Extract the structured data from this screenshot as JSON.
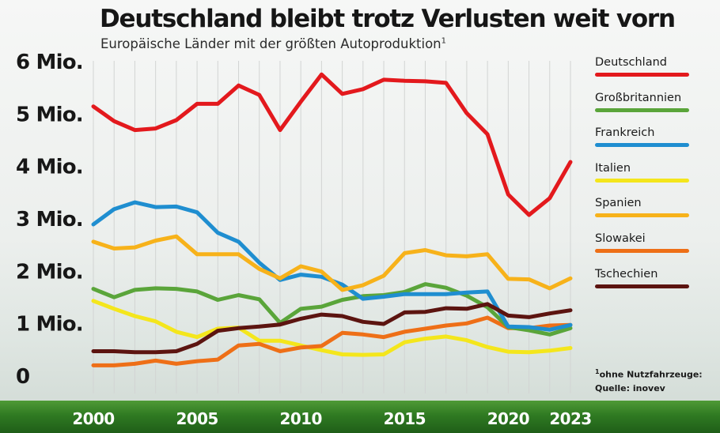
{
  "title": "Deutschland bleibt trotz Verlusten weit vorn",
  "subtitle": "Europäische Länder mit der größten Autoproduktion",
  "subtitle_note": "1",
  "footnote": {
    "marker": "1",
    "text": "ohne Nutzfahrzeuge:",
    "source": "Quelle: inovev"
  },
  "chart_data": {
    "type": "line",
    "title": "Deutschland bleibt trotz Verlusten weit vorn",
    "subtitle": "Europäische Länder mit der größten Autoproduktion",
    "xlabel": "",
    "ylabel": "",
    "xlim": [
      2000,
      2023
    ],
    "ylim": [
      0,
      6
    ],
    "grid": "vertical lines at each year",
    "legend": "right",
    "y_ticks": [
      {
        "value": 0,
        "label": "0"
      },
      {
        "value": 1,
        "label": "1 Mio."
      },
      {
        "value": 2,
        "label": "2 Mio."
      },
      {
        "value": 3,
        "label": "3 Mio."
      },
      {
        "value": 4,
        "label": "4 Mio."
      },
      {
        "value": 5,
        "label": "5 Mio."
      },
      {
        "value": 6,
        "label": "6 Mio."
      }
    ],
    "x_ticks": [
      {
        "value": 2000,
        "label": "2000"
      },
      {
        "value": 2005,
        "label": "2005"
      },
      {
        "value": 2010,
        "label": "2010"
      },
      {
        "value": 2015,
        "label": "2015"
      },
      {
        "value": 2020,
        "label": "2020"
      },
      {
        "value": 2023,
        "label": "2023"
      }
    ],
    "x": [
      2000,
      2001,
      2002,
      2003,
      2004,
      2005,
      2006,
      2007,
      2008,
      2009,
      2010,
      2011,
      2012,
      2013,
      2014,
      2015,
      2016,
      2017,
      2018,
      2019,
      2020,
      2021,
      2022,
      2023
    ],
    "series": [
      {
        "name": "Deutschland",
        "color": "#e3191d",
        "values": [
          5.13,
          4.85,
          4.68,
          4.71,
          4.87,
          5.18,
          5.18,
          5.53,
          5.35,
          4.68,
          5.22,
          5.74,
          5.37,
          5.46,
          5.64,
          5.62,
          5.61,
          5.58,
          5.0,
          4.6,
          3.45,
          3.06,
          3.38,
          4.07
        ]
      },
      {
        "name": "Großbritannien",
        "color": "#5aa53a",
        "values": [
          1.65,
          1.49,
          1.63,
          1.66,
          1.65,
          1.6,
          1.44,
          1.53,
          1.45,
          1.0,
          1.27,
          1.31,
          1.44,
          1.51,
          1.53,
          1.59,
          1.74,
          1.67,
          1.52,
          1.3,
          0.92,
          0.86,
          0.78,
          0.9
        ]
      },
      {
        "name": "Frankreich",
        "color": "#1f8ed0",
        "values": [
          2.88,
          3.17,
          3.3,
          3.21,
          3.22,
          3.11,
          2.72,
          2.55,
          2.15,
          1.82,
          1.92,
          1.88,
          1.73,
          1.46,
          1.5,
          1.55,
          1.55,
          1.55,
          1.58,
          1.6,
          0.93,
          0.92,
          0.87,
          0.96
        ]
      },
      {
        "name": "Italien",
        "color": "#f4e61c",
        "values": [
          1.42,
          1.27,
          1.13,
          1.03,
          0.83,
          0.73,
          0.89,
          0.91,
          0.66,
          0.66,
          0.57,
          0.48,
          0.4,
          0.39,
          0.4,
          0.63,
          0.7,
          0.74,
          0.67,
          0.54,
          0.45,
          0.44,
          0.47,
          0.52
        ]
      },
      {
        "name": "Spanien",
        "color": "#f7b21a",
        "values": [
          2.55,
          2.42,
          2.44,
          2.57,
          2.65,
          2.31,
          2.31,
          2.31,
          2.03,
          1.85,
          2.08,
          1.98,
          1.63,
          1.72,
          1.9,
          2.33,
          2.39,
          2.29,
          2.27,
          2.31,
          1.84,
          1.83,
          1.66,
          1.85
        ]
      },
      {
        "name": "Slowakei",
        "color": "#ee6f17",
        "values": [
          0.19,
          0.19,
          0.22,
          0.28,
          0.22,
          0.27,
          0.3,
          0.57,
          0.6,
          0.46,
          0.53,
          0.56,
          0.81,
          0.78,
          0.73,
          0.83,
          0.89,
          0.95,
          0.99,
          1.1,
          0.9,
          0.9,
          0.95,
          0.96
        ]
      },
      {
        "name": "Tschechien",
        "color": "#5c1410",
        "values": [
          0.46,
          0.46,
          0.44,
          0.44,
          0.46,
          0.6,
          0.85,
          0.9,
          0.93,
          0.97,
          1.08,
          1.16,
          1.13,
          1.02,
          0.98,
          1.2,
          1.21,
          1.28,
          1.27,
          1.36,
          1.14,
          1.11,
          1.18,
          1.24
        ]
      }
    ]
  }
}
